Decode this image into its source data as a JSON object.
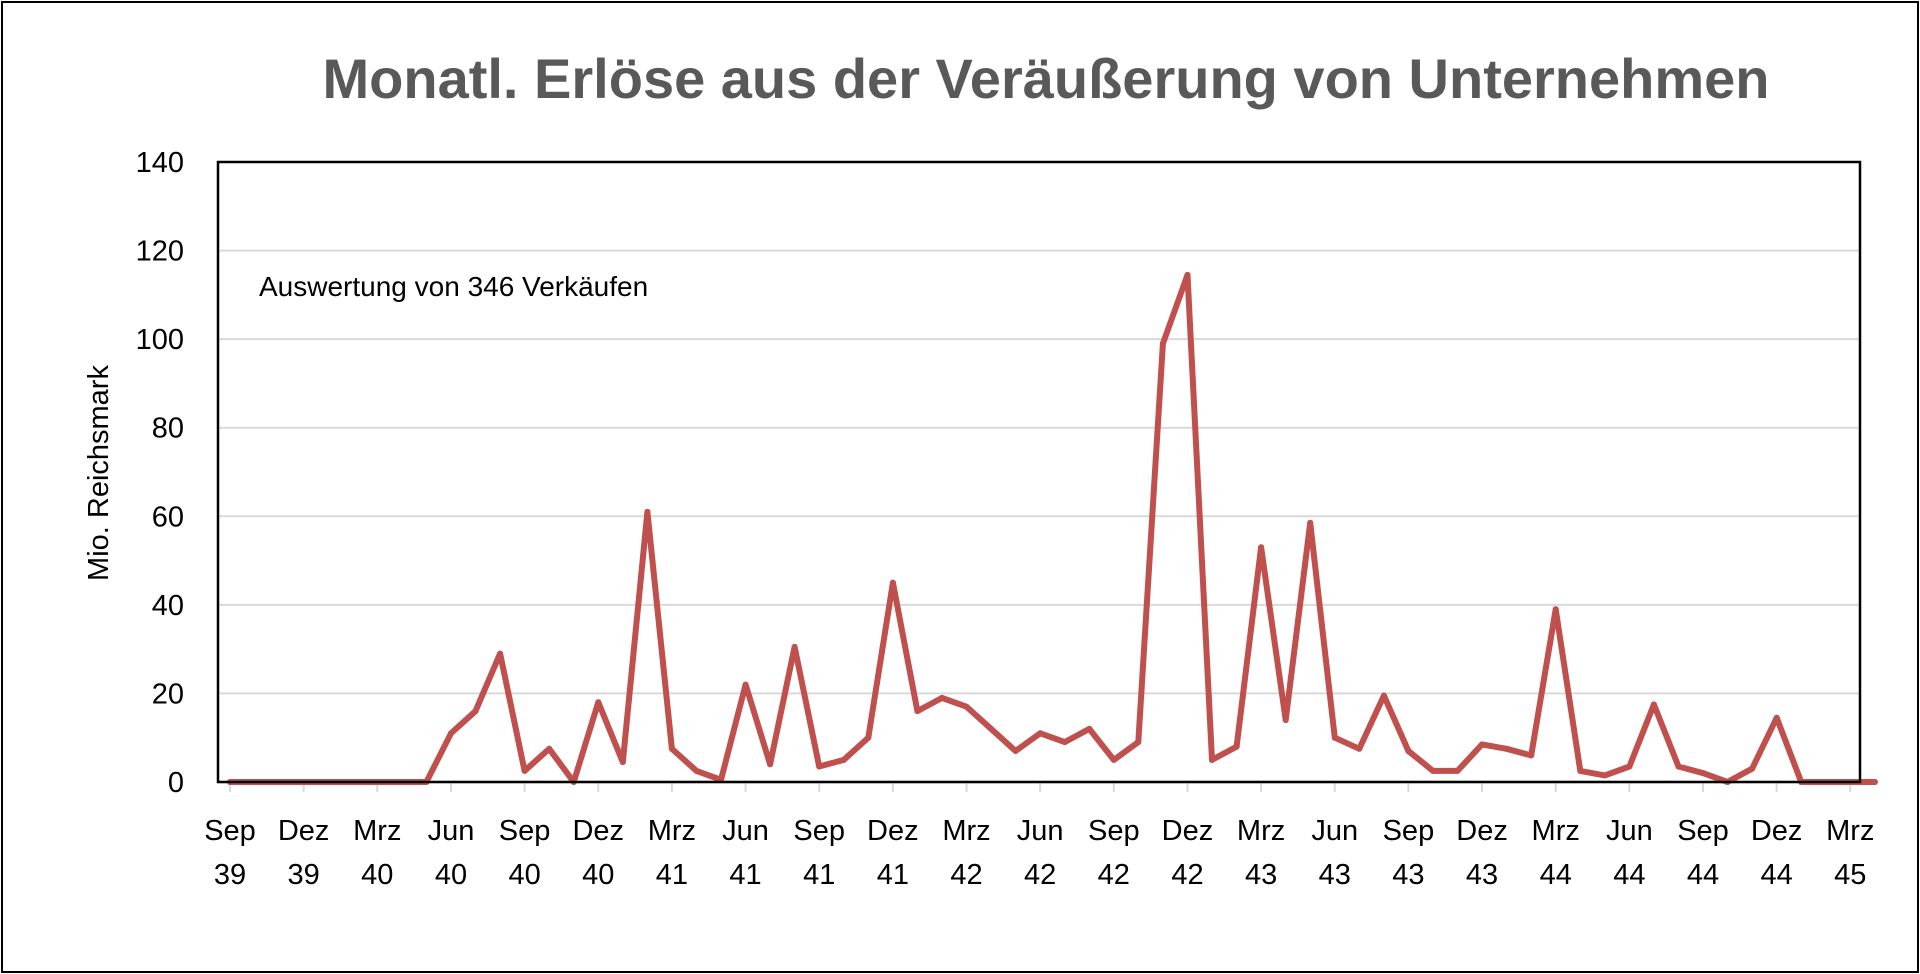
{
  "chart_data": {
    "type": "line",
    "title": "Monatl. Erlöse aus der Veräußerung von Unternehmen",
    "xlabel": "",
    "ylabel": "Mio. Reichsmark",
    "annotation": "Auswertung von 346 Verkäufen",
    "ylim": [
      0,
      140
    ],
    "yticks": [
      "0",
      "20",
      "40",
      "60",
      "80",
      "100",
      "120",
      "140"
    ],
    "grid": true,
    "legend": "none",
    "line_color": "#C0504D",
    "xtick_labels": [
      [
        "Sep",
        "39"
      ],
      [
        "Dez",
        "39"
      ],
      [
        "Mrz",
        "40"
      ],
      [
        "Jun",
        "40"
      ],
      [
        "Sep",
        "40"
      ],
      [
        "Dez",
        "40"
      ],
      [
        "Mrz",
        "41"
      ],
      [
        "Jun",
        "41"
      ],
      [
        "Sep",
        "41"
      ],
      [
        "Dez",
        "41"
      ],
      [
        "Mrz",
        "42"
      ],
      [
        "Jun",
        "42"
      ],
      [
        "Sep",
        "42"
      ],
      [
        "Dez",
        "42"
      ],
      [
        "Mrz",
        "43"
      ],
      [
        "Jun",
        "43"
      ],
      [
        "Sep",
        "43"
      ],
      [
        "Dez",
        "43"
      ],
      [
        "Mrz",
        "44"
      ],
      [
        "Jun",
        "44"
      ],
      [
        "Sep",
        "44"
      ],
      [
        "Dez",
        "44"
      ],
      [
        "Mrz",
        "45"
      ]
    ],
    "series": [
      {
        "name": "Erlöse",
        "values": [
          0,
          0,
          0,
          0,
          0,
          0,
          0,
          0,
          0,
          11,
          16,
          29,
          2.5,
          7.5,
          0,
          18,
          4.5,
          61,
          7.5,
          2.5,
          0.5,
          22,
          4,
          30.5,
          3.5,
          5,
          10,
          45,
          16,
          19,
          17,
          12,
          7,
          11,
          9,
          12,
          5,
          9,
          99,
          114.5,
          5,
          8,
          53,
          14,
          58.5,
          10,
          7.5,
          19.5,
          7,
          2.5,
          2.5,
          8.5,
          7.5,
          6,
          39,
          2.5,
          1.5,
          3.5,
          17.5,
          3.5,
          2,
          0,
          3,
          14.5,
          0,
          0,
          0,
          0
        ]
      }
    ]
  }
}
